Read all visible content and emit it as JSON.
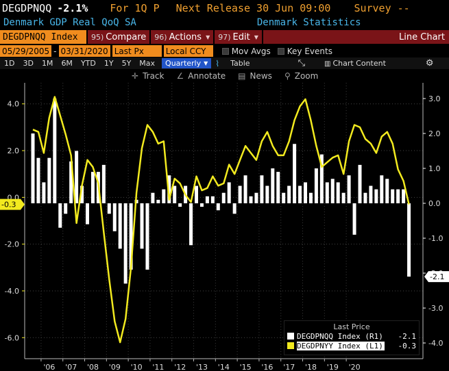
{
  "header": {
    "ticker": "DEGDPNQQ",
    "change": "-2.1%",
    "for_label": "For 1Q P",
    "next_release": "Next Release 30 Jun 09:00",
    "survey": "Survey --"
  },
  "subheader": {
    "description": "Denmark GDP Real QoQ SA",
    "source": "Denmark Statistics"
  },
  "menu": {
    "security": "DEGDPNQQ Index",
    "compare_num": "95)",
    "compare": "Compare",
    "actions_num": "96)",
    "actions": "Actions",
    "edit_num": "97)",
    "edit": "Edit",
    "chart_type": "Line Chart"
  },
  "range": {
    "start": "05/29/2005",
    "end": "03/31/2020",
    "field": "Last Px",
    "currency": "Local CCY",
    "mov_avgs": "Mov Avgs",
    "key_events": "Key Events"
  },
  "periods": {
    "buttons": [
      "1D",
      "3D",
      "1M",
      "6M",
      "YTD",
      "1Y",
      "5Y",
      "Max"
    ],
    "frequency": "Quarterly",
    "table": "Table",
    "chart_content": "Chart Content"
  },
  "tools": {
    "track": "Track",
    "annotate": "Annotate",
    "news": "News",
    "zoom": "Zoom"
  },
  "colors": {
    "bars": "#ffffff",
    "line": "#f2ea1f",
    "accent_orange": "#f08c1e",
    "accent_blue": "#49b6e9",
    "menu_red": "#7a1418"
  },
  "chart_data": {
    "type": "bar",
    "x_labels": [
      "'06",
      "'07",
      "'08",
      "'09",
      "'10",
      "'11",
      "'12",
      "'13",
      "'14",
      "'15",
      "'16",
      "'17",
      "'18",
      "'19",
      "'20"
    ],
    "left_axis": {
      "ticks": [
        4.0,
        2.0,
        0.0,
        -2.0,
        -4.0,
        -6.0
      ],
      "tick_labels": [
        "4.0",
        "2.0",
        "0.0",
        "-2.0",
        "-4.0",
        "-6.0"
      ],
      "ylim": [
        -6.9,
        4.9
      ]
    },
    "right_axis": {
      "ticks": [
        3.0,
        2.0,
        1.0,
        0.0,
        -1.0,
        -2.0,
        -3.0,
        -4.0
      ],
      "tick_labels": [
        "3.0",
        "2.0",
        "1.0",
        "0.0",
        "-1.0",
        "-2.0",
        "-3.0",
        "-4.0"
      ],
      "ylim": [
        -4.45,
        3.45
      ]
    },
    "series": [
      {
        "name": "DEGDPNQQ Index",
        "axis": "R1",
        "kind": "bar",
        "last": "-2.1",
        "values": [
          2.0,
          1.3,
          0.6,
          1.3,
          3.0,
          -0.7,
          -0.3,
          1.2,
          1.5,
          0.5,
          -0.6,
          0.9,
          0.9,
          1.1,
          -0.3,
          -0.8,
          -1.3,
          -2.3,
          -1.9,
          0.1,
          -1.3,
          -1.9,
          0.3,
          0.1,
          0.4,
          0.8,
          0.5,
          -0.1,
          0.5,
          -1.2,
          0.5,
          -0.1,
          0.2,
          0.2,
          -0.2,
          0.3,
          0.6,
          -0.3,
          0.5,
          0.8,
          0.2,
          0.3,
          0.8,
          0.5,
          1.0,
          0.9,
          0.3,
          0.5,
          1.7,
          0.5,
          0.6,
          0.3,
          1.0,
          1.4,
          0.6,
          0.7,
          0.6,
          0.3,
          0.8,
          -0.9,
          1.1,
          0.3,
          0.5,
          0.4,
          0.8,
          0.7,
          0.4,
          0.4,
          0.4,
          -2.1
        ]
      },
      {
        "name": "DEGDPNYY Index",
        "axis": "L1",
        "kind": "line",
        "last": "-0.3",
        "values": [
          2.9,
          2.8,
          1.9,
          3.4,
          4.3,
          3.5,
          2.7,
          1.8,
          -1.1,
          0.5,
          1.6,
          1.3,
          0.6,
          -1.5,
          -3.5,
          -5.3,
          -6.2,
          -5.2,
          -3.0,
          0.2,
          2.1,
          3.1,
          2.8,
          2.3,
          2.4,
          -0.1,
          0.8,
          0.6,
          0.1,
          -0.2,
          0.9,
          0.3,
          0.4,
          0.9,
          0.5,
          0.6,
          1.4,
          1.0,
          1.6,
          2.2,
          1.9,
          1.6,
          2.4,
          2.8,
          2.2,
          1.8,
          1.8,
          2.4,
          3.3,
          3.9,
          4.2,
          3.3,
          2.2,
          1.3,
          1.5,
          1.7,
          1.8,
          1.0,
          2.4,
          3.1,
          3.0,
          2.5,
          2.3,
          1.9,
          2.6,
          2.8,
          2.3,
          1.2,
          0.7,
          -0.3
        ]
      }
    ],
    "legend": {
      "title": "Last Price",
      "placement": "bottom-right"
    },
    "grid": true
  }
}
